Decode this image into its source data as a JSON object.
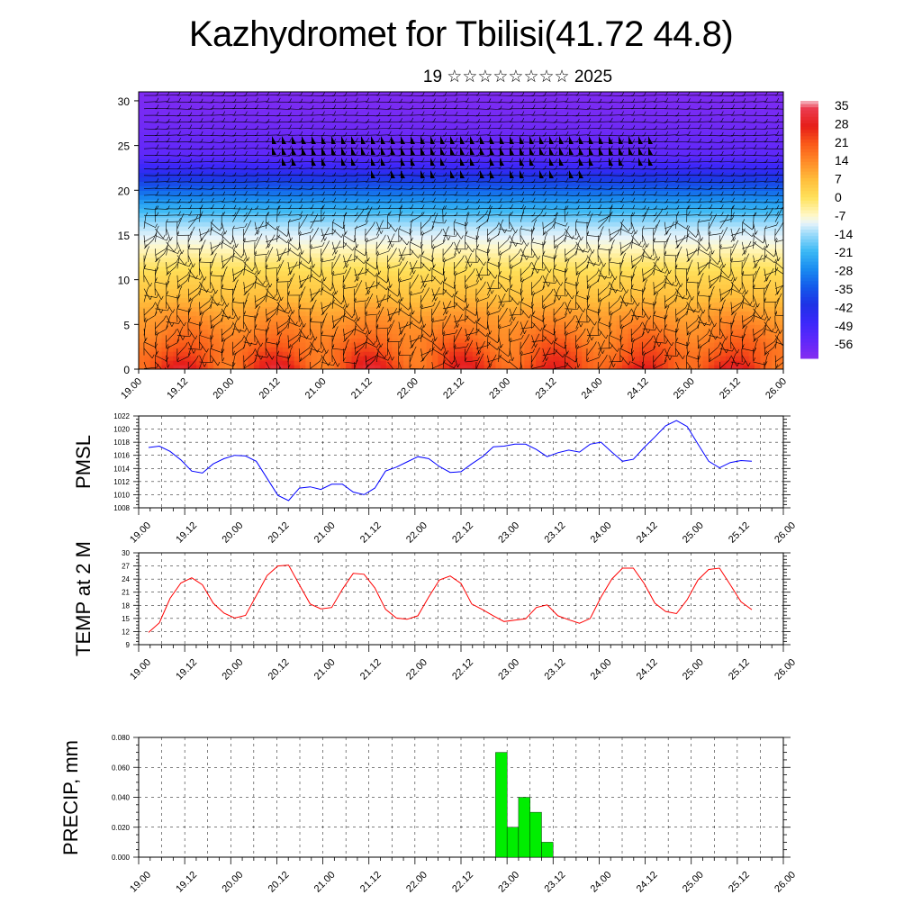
{
  "title": "Kazhydromet for Tbilisi(41.72 44.8)",
  "subtitle": "19 ☆☆☆☆☆☆☆☆ 2025",
  "time_labels": [
    "19.00",
    "19.12",
    "20.00",
    "20.12",
    "21.00",
    "21.12",
    "22.00",
    "22.12",
    "23.00",
    "23.12",
    "24.00",
    "24.12",
    "25.00",
    "25.12",
    "26.00"
  ],
  "chart_data": [
    {
      "type": "heatmap",
      "title": "",
      "description_fields": "temperature cross-section with wind barbs",
      "x": [
        "19.00",
        "19.12",
        "20.00",
        "20.12",
        "21.00",
        "21.12",
        "22.00",
        "22.12",
        "23.00",
        "23.12",
        "24.00",
        "24.12",
        "25.00",
        "25.12",
        "26.00"
      ],
      "yticks": [
        0,
        5,
        10,
        15,
        20,
        25,
        30
      ],
      "ylim": [
        0,
        31
      ],
      "colorbar": {
        "labels": [
          "35",
          "28",
          "21",
          "14",
          "7",
          "0",
          "-7",
          "-14",
          "-21",
          "-28",
          "-35",
          "-42",
          "-49",
          "-56"
        ],
        "range": [
          -63,
          38
        ]
      },
      "temperature_profile": {
        "heights": [
          0,
          2,
          4,
          6,
          8,
          10,
          12,
          14,
          16,
          18,
          20,
          22,
          24,
          26,
          28,
          31
        ],
        "temps": [
          24,
          20,
          16,
          12,
          7,
          3,
          -2,
          -8,
          -13,
          -22,
          -33,
          -45,
          -56,
          -58,
          -60,
          -62
        ]
      },
      "diurnal_amplitude_surface": 7
    },
    {
      "type": "line",
      "ylabel": "PMSL",
      "yticks": [
        1008,
        1010,
        1012,
        1014,
        1016,
        1018,
        1020,
        1022
      ],
      "ylim": [
        1008,
        1022
      ],
      "grid": true,
      "series": [
        {
          "color": "#0000ff",
          "x_step_hours": 3,
          "values": [
            1017.2,
            1017.4,
            1016.6,
            1015.3,
            1013.6,
            1013.3,
            1014.7,
            1015.5,
            1016.0,
            1015.9,
            1015.1,
            1012.5,
            1009.9,
            1009.1,
            1011.0,
            1011.2,
            1010.8,
            1011.6,
            1011.6,
            1010.4,
            1010.0,
            1011.0,
            1013.6,
            1014.2,
            1015.0,
            1015.8,
            1015.5,
            1014.3,
            1013.4,
            1013.5,
            1014.7,
            1015.8,
            1017.3,
            1017.4,
            1017.7,
            1017.7,
            1016.9,
            1015.8,
            1016.4,
            1016.8,
            1016.5,
            1017.7,
            1018.0,
            1016.5,
            1015.1,
            1015.4,
            1017.2,
            1018.8,
            1020.5,
            1021.3,
            1020.4,
            1017.7,
            1015.1,
            1014.1,
            1014.9,
            1015.2,
            1015.1
          ]
        }
      ]
    },
    {
      "type": "line",
      "ylabel": "TEMP at 2 M",
      "yticks": [
        9,
        12,
        15,
        18,
        21,
        24,
        27,
        30
      ],
      "ylim": [
        9,
        30
      ],
      "grid": true,
      "series": [
        {
          "color": "#ff0000",
          "x_step_hours": 3,
          "values": [
            11.8,
            14.0,
            19.6,
            23.1,
            24.3,
            22.7,
            18.5,
            16.2,
            15.1,
            15.7,
            20.2,
            24.8,
            27.0,
            27.2,
            22.7,
            18.3,
            17.2,
            17.5,
            21.7,
            25.3,
            25.1,
            22.0,
            17.1,
            15.1,
            14.8,
            15.6,
            19.9,
            23.8,
            24.7,
            23.0,
            18.3,
            17.0,
            15.6,
            14.3,
            14.6,
            14.9,
            17.5,
            18.1,
            15.6,
            14.7,
            13.9,
            15.0,
            19.9,
            24.0,
            26.5,
            26.5,
            23.0,
            18.5,
            16.6,
            16.1,
            19.3,
            23.8,
            26.2,
            26.5,
            22.7,
            18.8,
            17.0
          ]
        }
      ]
    },
    {
      "type": "bar",
      "ylabel": "PRECIP, mm",
      "yticks": [
        "0.000",
        "0.020",
        "0.040",
        "0.060",
        "0.080"
      ],
      "ylim": [
        0,
        0.08
      ],
      "grid": true,
      "series": [
        {
          "color": "#00ee00",
          "bars": [
            {
              "start": "22.21",
              "end": "23.00",
              "value": 0.07
            },
            {
              "start": "23.00",
              "end": "23.03",
              "value": 0.02
            },
            {
              "start": "23.03",
              "end": "23.06",
              "value": 0.04
            },
            {
              "start": "23.06",
              "end": "23.09",
              "value": 0.03
            },
            {
              "start": "23.09",
              "end": "23.12",
              "value": 0.01
            }
          ]
        }
      ]
    }
  ]
}
